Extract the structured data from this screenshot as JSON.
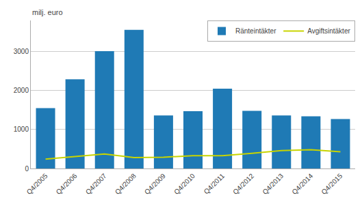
{
  "chart_data": {
    "type": "bar",
    "ylabel": "milj. euro",
    "categories": [
      "Q4/2005",
      "Q4/2006",
      "Q4/2007",
      "Q4/2008",
      "Q4/2009",
      "Q4/2010",
      "Q4/2011",
      "Q4/2012",
      "Q4/2013",
      "Q4/2014",
      "Q4/2015"
    ],
    "series": [
      {
        "name": "Ränteintäkter",
        "type": "bar",
        "color": "#1f7ab5",
        "values": [
          1550,
          2290,
          3010,
          3560,
          1360,
          1470,
          2050,
          1480,
          1360,
          1340,
          1270
        ]
      },
      {
        "name": "Avgiftsintäkter",
        "type": "line",
        "color": "#c8d400",
        "values": [
          240,
          300,
          370,
          280,
          290,
          330,
          330,
          390,
          460,
          480,
          430
        ]
      }
    ],
    "ylim": [
      0,
      3800
    ],
    "yticks": [
      0,
      1000,
      2000,
      3000
    ],
    "grid": true,
    "legend": "upper right"
  }
}
